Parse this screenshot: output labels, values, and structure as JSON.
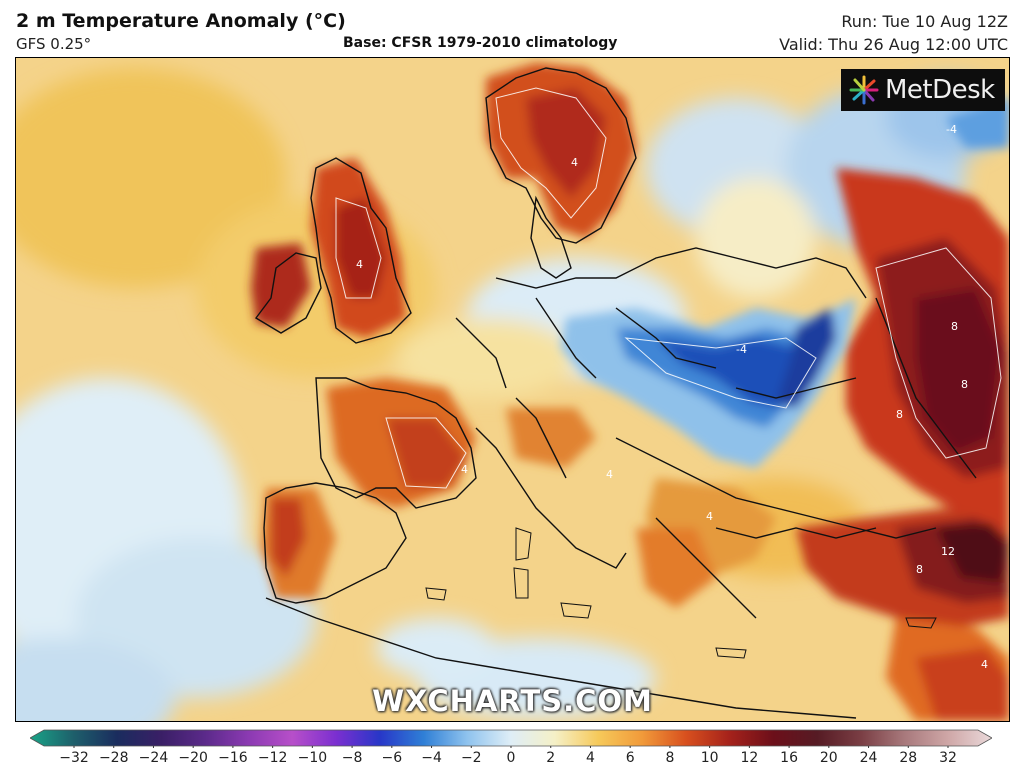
{
  "header": {
    "title": "2 m Temperature Anomaly (°C)",
    "model": "GFS 0.25°",
    "base": "Base: CFSR 1979-2010 climatology",
    "run": "Run: Tue 10 Aug 12Z",
    "valid": "Valid: Thu 26 Aug 12:00 UTC"
  },
  "logo": {
    "text": "MetDesk",
    "icon": "metdesk-starburst-icon"
  },
  "watermark": "WXCHARTS.COM",
  "map_labels": [
    "4",
    "4",
    "8",
    "8",
    "8",
    "4",
    "12",
    "8",
    "4",
    "4",
    "4",
    "-4",
    "-4"
  ],
  "colorbar": {
    "ticks": [
      "−32",
      "−28",
      "−24",
      "−20",
      "−16",
      "−12",
      "−10",
      "−8",
      "−6",
      "−4",
      "−2",
      "0",
      "2",
      "4",
      "6",
      "8",
      "10",
      "12",
      "16",
      "20",
      "24",
      "28",
      "32"
    ],
    "colors": [
      "#19a487",
      "#1e5f6b",
      "#1a2c5e",
      "#3a1f66",
      "#5b2a8a",
      "#8b3ab2",
      "#b74fc9",
      "#7b2fd0",
      "#2837c8",
      "#2f7fd6",
      "#8fc3ee",
      "#dfeef7",
      "#f5f0c7",
      "#f6c95a",
      "#f19a3a",
      "#d8501e",
      "#a5221b",
      "#6c0f1a",
      "#561b24",
      "#7a3e44",
      "#a8797c",
      "#cfa7a7",
      "#ead9da"
    ]
  },
  "colors": {
    "sea_neutral": "#f2d48c",
    "warm": "#e2601f",
    "hot": "#a4231a",
    "cool": "#cfe4f2",
    "cold": "#1f52b8"
  }
}
